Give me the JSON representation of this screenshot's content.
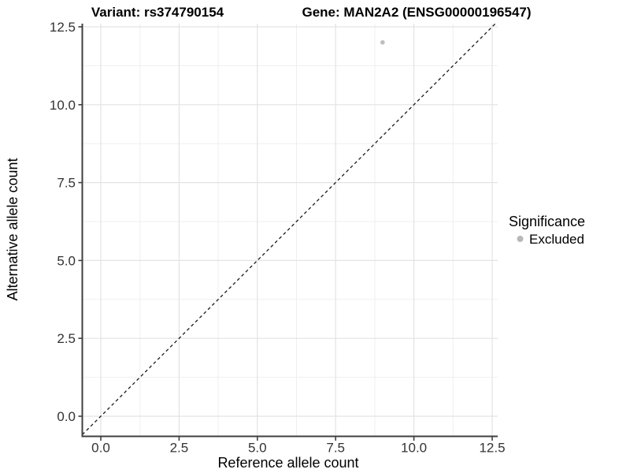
{
  "figure": {
    "titles": {
      "variant": "Variant: rs374790154",
      "gene": "Gene: MAN2A2 (ENSG00000196547)"
    }
  },
  "axes": {
    "x": {
      "label": "Reference allele count",
      "tick_labels": [
        "0.0",
        "2.5",
        "5.0",
        "7.5",
        "10.0",
        "12.5"
      ]
    },
    "y": {
      "label": "Alternative allele count",
      "tick_labels": [
        "0.0",
        "2.5",
        "5.0",
        "7.5",
        "10.0",
        "12.5"
      ]
    }
  },
  "legend": {
    "title": "Significance",
    "items": [
      {
        "label": "Excluded",
        "color": "#b8b8b8",
        "marker": "circle-icon"
      }
    ]
  },
  "colors": {
    "background": "#ffffff",
    "grid_major": "#e3e3e3",
    "grid_minor": "#efefef",
    "axis_line": "#3f3f3f",
    "tick_mark": "#3f3f3f",
    "tick_text": "#333333",
    "reference_line": "#1a1a1a",
    "point": "#bdbdbd"
  },
  "chart_data": {
    "type": "scatter",
    "title": "Variant: rs374790154 — Gene: MAN2A2 (ENSG00000196547)",
    "xlabel": "Reference allele count",
    "ylabel": "Alternative allele count",
    "x_ticks": [
      0,
      2.5,
      5,
      7.5,
      10,
      12.5
    ],
    "y_ticks": [
      0,
      2.5,
      5,
      7.5,
      10,
      12.5
    ],
    "xlim": [
      -0.6,
      12.68
    ],
    "ylim": [
      -0.63,
      12.6
    ],
    "grid": "major and minor gridlines, light gray on white panel",
    "legend_position": "right",
    "legend_title": "Significance",
    "reference_line": {
      "type": "identity_y_equals_x",
      "style": "dashed",
      "color": "#1a1a1a"
    },
    "series": [
      {
        "name": "Excluded",
        "color": "#bdbdbd",
        "points": [
          {
            "x": 9,
            "y": 12
          }
        ]
      }
    ]
  }
}
